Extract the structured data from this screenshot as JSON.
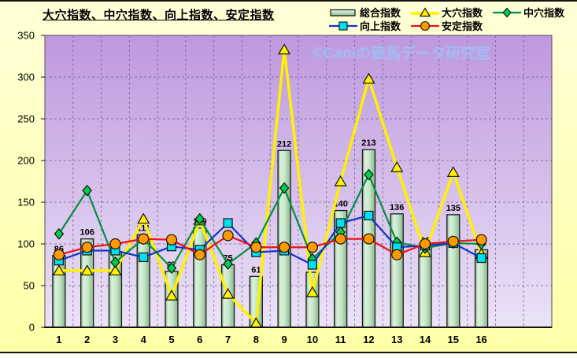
{
  "title": "大穴指数、中穴指数、向上指数、安定指数",
  "watermark": "©Caniの競馬データ研究室",
  "chart_data": {
    "type": "combo-bar-line",
    "categories": [
      "1",
      "2",
      "3",
      "4",
      "5",
      "6",
      "7",
      "8",
      "9",
      "10",
      "11",
      "12",
      "13",
      "14",
      "15",
      "16"
    ],
    "series": [
      {
        "name": "総合指数",
        "type": "bar",
        "color": "#BFE3C1",
        "border_color": "#1C1C1C",
        "labels_shown": true,
        "values": [
          86,
          106,
          90,
          111,
          67,
          119,
          75,
          61,
          212,
          66,
          140,
          213,
          136,
          96,
          135,
          93
        ]
      },
      {
        "name": "大穴指数",
        "type": "line",
        "color": "#FFF100",
        "marker": "triangle",
        "marker_color": "#FFF100",
        "line_width": 3.5,
        "values": [
          68,
          68,
          68,
          130,
          38,
          128,
          40,
          5,
          333,
          42,
          175,
          298,
          192,
          90,
          186,
          88
        ]
      },
      {
        "name": "中穴指数",
        "type": "line",
        "color": "#009140",
        "marker": "diamond",
        "marker_color": "#00CC50",
        "line_width": 2.2,
        "values": [
          112,
          164,
          78,
          106,
          71,
          130,
          76,
          101,
          167,
          82,
          114,
          183,
          102,
          95,
          101,
          100
        ]
      },
      {
        "name": "向上指数",
        "type": "line",
        "color": "#1133CC",
        "marker": "square",
        "marker_color": "#00E0F0",
        "line_width": 2.2,
        "values": [
          80,
          92,
          92,
          84,
          97,
          93,
          125,
          90,
          92,
          75,
          125,
          134,
          96,
          98,
          101,
          83
        ]
      },
      {
        "name": "安定指数",
        "type": "line",
        "color": "#EE1111",
        "marker": "circle",
        "marker_color": "#FF9900",
        "line_width": 2.2,
        "values": [
          87,
          96,
          100,
          106,
          105,
          87,
          110,
          96,
          96,
          96,
          106,
          106,
          87,
          100,
          103,
          105
        ]
      }
    ],
    "ylim": [
      0,
      350
    ],
    "y_ticks": [
      0,
      50,
      100,
      150,
      200,
      250,
      300,
      350
    ],
    "x_slots": 18,
    "grid": true,
    "legend_position": "top-right",
    "style": {
      "plot_bg_top": "#BE98DE",
      "plot_bg_bottom": "#ECE3F7",
      "grid_color": "#70608A",
      "frame_color": "#55495F",
      "axis_color": "#111111",
      "text_color": "#000000",
      "watermark_color": "#9EC1F7",
      "outer_bg": "#FFFFC9"
    }
  }
}
